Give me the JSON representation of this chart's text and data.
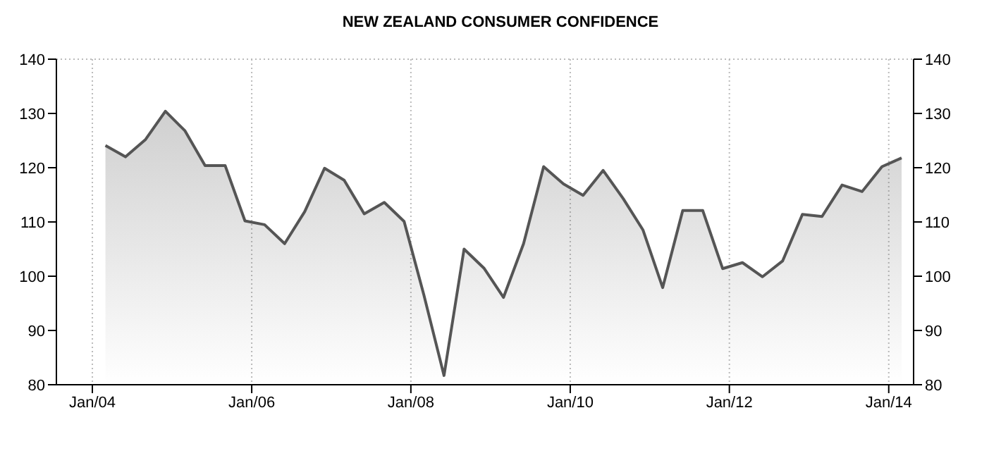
{
  "chart_data": {
    "type": "area",
    "title": "NEW ZEALAND CONSUMER CONFIDENCE",
    "x": [
      "2004-03",
      "2004-06",
      "2004-09",
      "2004-12",
      "2005-03",
      "2005-06",
      "2005-09",
      "2005-12",
      "2006-03",
      "2006-06",
      "2006-09",
      "2006-12",
      "2007-03",
      "2007-06",
      "2007-09",
      "2007-12",
      "2008-03",
      "2008-06",
      "2008-09",
      "2008-12",
      "2009-03",
      "2009-06",
      "2009-09",
      "2009-12",
      "2010-03",
      "2010-06",
      "2010-09",
      "2010-12",
      "2011-03",
      "2011-06",
      "2011-09",
      "2011-12",
      "2012-03",
      "2012-06",
      "2012-09",
      "2012-12",
      "2013-03",
      "2013-06",
      "2013-09",
      "2013-12",
      "2014-03"
    ],
    "series": [
      {
        "color": "#555555",
        "values": [
          124.1,
          122,
          125.2,
          130.4,
          126.8,
          120.4,
          120.4,
          110.2,
          109.5,
          106,
          111.9,
          119.9,
          117.7,
          111.5,
          113.6,
          110.1,
          96.5,
          81.7,
          105,
          101.5,
          96.1,
          106,
          120.2,
          117,
          114.9,
          119.5,
          114.3,
          108.5,
          97.9,
          112.1,
          112.1,
          101.4,
          102.5,
          99.9,
          102.8,
          111.4,
          111,
          116.8,
          115.6,
          120.2,
          121.8
        ]
      }
    ],
    "xlim": [
      "2003-07-20",
      "2014-04-25"
    ],
    "xticks": [
      {
        "value": "2004-01-01",
        "label": "Jan/04"
      },
      {
        "value": "2006-01-01",
        "label": "Jan/06"
      },
      {
        "value": "2008-01-01",
        "label": "Jan/08"
      },
      {
        "value": "2010-01-01",
        "label": "Jan/10"
      },
      {
        "value": "2012-01-01",
        "label": "Jan/12"
      },
      {
        "value": "2014-01-01",
        "label": "Jan/14"
      }
    ],
    "ylim": [
      80,
      140
    ],
    "yticks": [
      80,
      90,
      100,
      110,
      120,
      130,
      140
    ],
    "y2lim": [
      80,
      140
    ],
    "y2ticks": [
      80,
      90,
      100,
      110,
      120,
      130,
      140
    ],
    "grid": true,
    "legend": false,
    "marker": "none",
    "line_style": "solid"
  }
}
